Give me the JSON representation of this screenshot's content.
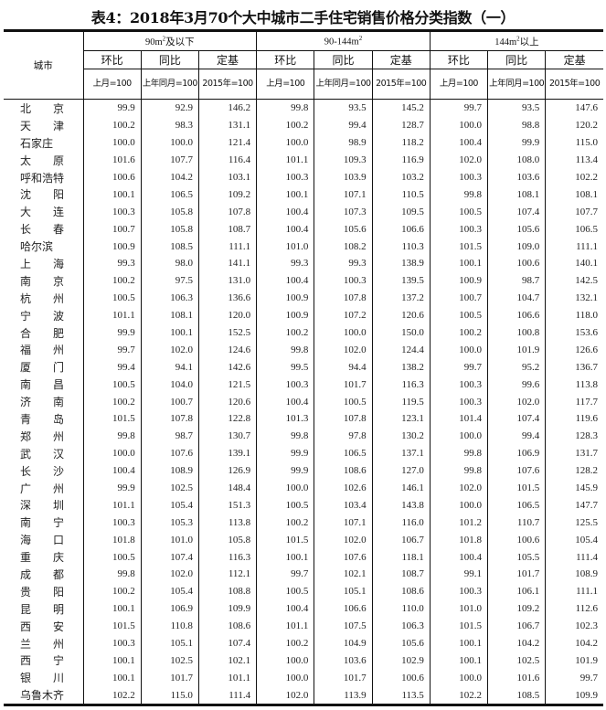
{
  "title": "表4：2018年3月70个大中城市二手住宅销售价格分类指数（一）",
  "header": {
    "city": "城市",
    "groups": [
      {
        "pre": "90m",
        "sup": "2",
        "post": "及以下"
      },
      {
        "pre": "90-144m",
        "sup": "2",
        "post": ""
      },
      {
        "pre": "144m",
        "sup": "2",
        "post": "以上"
      }
    ],
    "metrics": [
      "环比",
      "同比",
      "定基"
    ],
    "bases": [
      "上月=100",
      "上年同月=100",
      "2015年=100"
    ]
  },
  "rows": [
    {
      "city": "北　　京",
      "v": [
        "99.9",
        "92.9",
        "146.2",
        "99.8",
        "93.5",
        "145.2",
        "99.7",
        "93.5",
        "147.6"
      ]
    },
    {
      "city": "天　　津",
      "v": [
        "100.2",
        "98.3",
        "131.1",
        "100.2",
        "99.4",
        "128.7",
        "100.0",
        "98.8",
        "120.2"
      ]
    },
    {
      "city": " 石家庄",
      "v": [
        "100.0",
        "100.0",
        "121.4",
        "100.0",
        "98.9",
        "118.2",
        "100.4",
        "99.9",
        "115.0"
      ]
    },
    {
      "city": "太　　原",
      "v": [
        "101.6",
        "107.7",
        "116.4",
        "101.1",
        "109.3",
        "116.9",
        "102.0",
        "108.0",
        "113.4"
      ]
    },
    {
      "city": "呼和浩特",
      "v": [
        "100.6",
        "104.2",
        "103.1",
        "100.3",
        "103.9",
        "103.2",
        "100.3",
        "103.6",
        "102.2"
      ]
    },
    {
      "city": "沈　　阳",
      "v": [
        "100.1",
        "106.5",
        "109.2",
        "100.1",
        "107.1",
        "110.5",
        "99.8",
        "108.1",
        "108.1"
      ]
    },
    {
      "city": "大　　连",
      "v": [
        "100.3",
        "105.8",
        "107.8",
        "100.4",
        "107.3",
        "109.5",
        "100.5",
        "107.4",
        "107.7"
      ]
    },
    {
      "city": "长　　春",
      "v": [
        "100.7",
        "105.8",
        "108.7",
        "100.4",
        "105.6",
        "106.6",
        "100.3",
        "105.6",
        "106.5"
      ]
    },
    {
      "city": " 哈尔滨",
      "v": [
        "100.9",
        "108.5",
        "111.1",
        "101.0",
        "108.2",
        "110.3",
        "101.5",
        "109.0",
        "111.1"
      ]
    },
    {
      "city": "上　　海",
      "v": [
        "99.3",
        "98.0",
        "141.1",
        "99.3",
        "99.3",
        "138.9",
        "100.1",
        "100.6",
        "140.1"
      ]
    },
    {
      "city": "南　　京",
      "v": [
        "100.2",
        "97.5",
        "131.0",
        "100.4",
        "100.3",
        "139.5",
        "100.9",
        "98.7",
        "142.5"
      ]
    },
    {
      "city": "杭　　州",
      "v": [
        "100.5",
        "106.3",
        "136.6",
        "100.9",
        "107.8",
        "137.2",
        "100.7",
        "104.7",
        "132.1"
      ]
    },
    {
      "city": "宁　　波",
      "v": [
        "101.1",
        "108.1",
        "120.0",
        "100.9",
        "107.2",
        "120.6",
        "100.5",
        "106.6",
        "118.0"
      ]
    },
    {
      "city": "合　　肥",
      "v": [
        "99.9",
        "100.1",
        "152.5",
        "100.2",
        "100.0",
        "150.0",
        "100.2",
        "100.8",
        "153.6"
      ]
    },
    {
      "city": "福　　州",
      "v": [
        "99.7",
        "102.0",
        "124.6",
        "99.8",
        "102.0",
        "124.4",
        "100.0",
        "101.9",
        "126.6"
      ]
    },
    {
      "city": "厦　　门",
      "v": [
        "99.4",
        "94.1",
        "142.6",
        "99.5",
        "94.4",
        "138.2",
        "99.7",
        "95.2",
        "136.7"
      ]
    },
    {
      "city": "南　　昌",
      "v": [
        "100.5",
        "104.0",
        "121.5",
        "100.3",
        "101.7",
        "116.3",
        "100.3",
        "99.6",
        "113.8"
      ]
    },
    {
      "city": "济　　南",
      "v": [
        "100.2",
        "100.7",
        "120.6",
        "100.4",
        "100.5",
        "119.5",
        "100.3",
        "102.0",
        "117.7"
      ]
    },
    {
      "city": "青　　岛",
      "v": [
        "101.5",
        "107.8",
        "122.8",
        "101.3",
        "107.8",
        "123.1",
        "101.4",
        "107.4",
        "119.6"
      ]
    },
    {
      "city": "郑　　州",
      "v": [
        "99.8",
        "98.7",
        "130.7",
        "99.8",
        "97.8",
        "130.2",
        "100.0",
        "99.4",
        "128.3"
      ]
    },
    {
      "city": "武　　汉",
      "v": [
        "100.0",
        "107.6",
        "139.1",
        "99.9",
        "106.5",
        "137.1",
        "99.8",
        "106.9",
        "131.7"
      ]
    },
    {
      "city": "长　　沙",
      "v": [
        "100.4",
        "108.9",
        "126.9",
        "99.9",
        "108.6",
        "127.0",
        "99.8",
        "107.6",
        "128.2"
      ]
    },
    {
      "city": "广　　州",
      "v": [
        "99.9",
        "102.5",
        "148.4",
        "100.0",
        "102.6",
        "146.1",
        "102.0",
        "101.5",
        "145.9"
      ]
    },
    {
      "city": "深　　圳",
      "v": [
        "101.1",
        "105.4",
        "151.3",
        "100.5",
        "103.4",
        "143.8",
        "100.0",
        "106.5",
        "147.7"
      ]
    },
    {
      "city": "南　　宁",
      "v": [
        "100.3",
        "105.3",
        "113.8",
        "100.2",
        "107.1",
        "116.0",
        "101.2",
        "110.7",
        "125.5"
      ]
    },
    {
      "city": "海　　口",
      "v": [
        "101.8",
        "101.0",
        "105.8",
        "101.5",
        "102.0",
        "106.7",
        "101.8",
        "100.6",
        "105.4"
      ]
    },
    {
      "city": "重　　庆",
      "v": [
        "100.5",
        "107.4",
        "116.3",
        "100.1",
        "107.6",
        "118.1",
        "100.4",
        "105.5",
        "111.4"
      ]
    },
    {
      "city": "成　　都",
      "v": [
        "99.8",
        "102.0",
        "112.1",
        "99.7",
        "102.1",
        "108.7",
        "99.1",
        "101.7",
        "108.9"
      ]
    },
    {
      "city": "贵　　阳",
      "v": [
        "100.2",
        "105.4",
        "108.8",
        "100.5",
        "105.1",
        "108.6",
        "100.3",
        "106.1",
        "111.1"
      ]
    },
    {
      "city": "昆　　明",
      "v": [
        "100.1",
        "106.9",
        "109.9",
        "100.4",
        "106.6",
        "110.0",
        "101.0",
        "109.2",
        "112.6"
      ]
    },
    {
      "city": "西　　安",
      "v": [
        "101.5",
        "110.8",
        "108.6",
        "101.1",
        "107.5",
        "106.3",
        "101.5",
        "106.7",
        "102.3"
      ]
    },
    {
      "city": "兰　　州",
      "v": [
        "100.3",
        "105.1",
        "107.4",
        "100.2",
        "104.9",
        "105.6",
        "100.1",
        "104.2",
        "104.2"
      ]
    },
    {
      "city": "西　　宁",
      "v": [
        "100.1",
        "102.5",
        "102.1",
        "100.0",
        "103.6",
        "102.9",
        "100.1",
        "102.5",
        "101.9"
      ]
    },
    {
      "city": "银　　川",
      "v": [
        "100.1",
        "101.7",
        "101.1",
        "100.0",
        "101.7",
        "100.6",
        "100.0",
        "101.6",
        "99.7"
      ]
    },
    {
      "city": "乌鲁木齐",
      "v": [
        "102.2",
        "115.0",
        "111.4",
        "102.0",
        "113.9",
        "113.5",
        "102.2",
        "108.5",
        "109.9"
      ]
    }
  ]
}
